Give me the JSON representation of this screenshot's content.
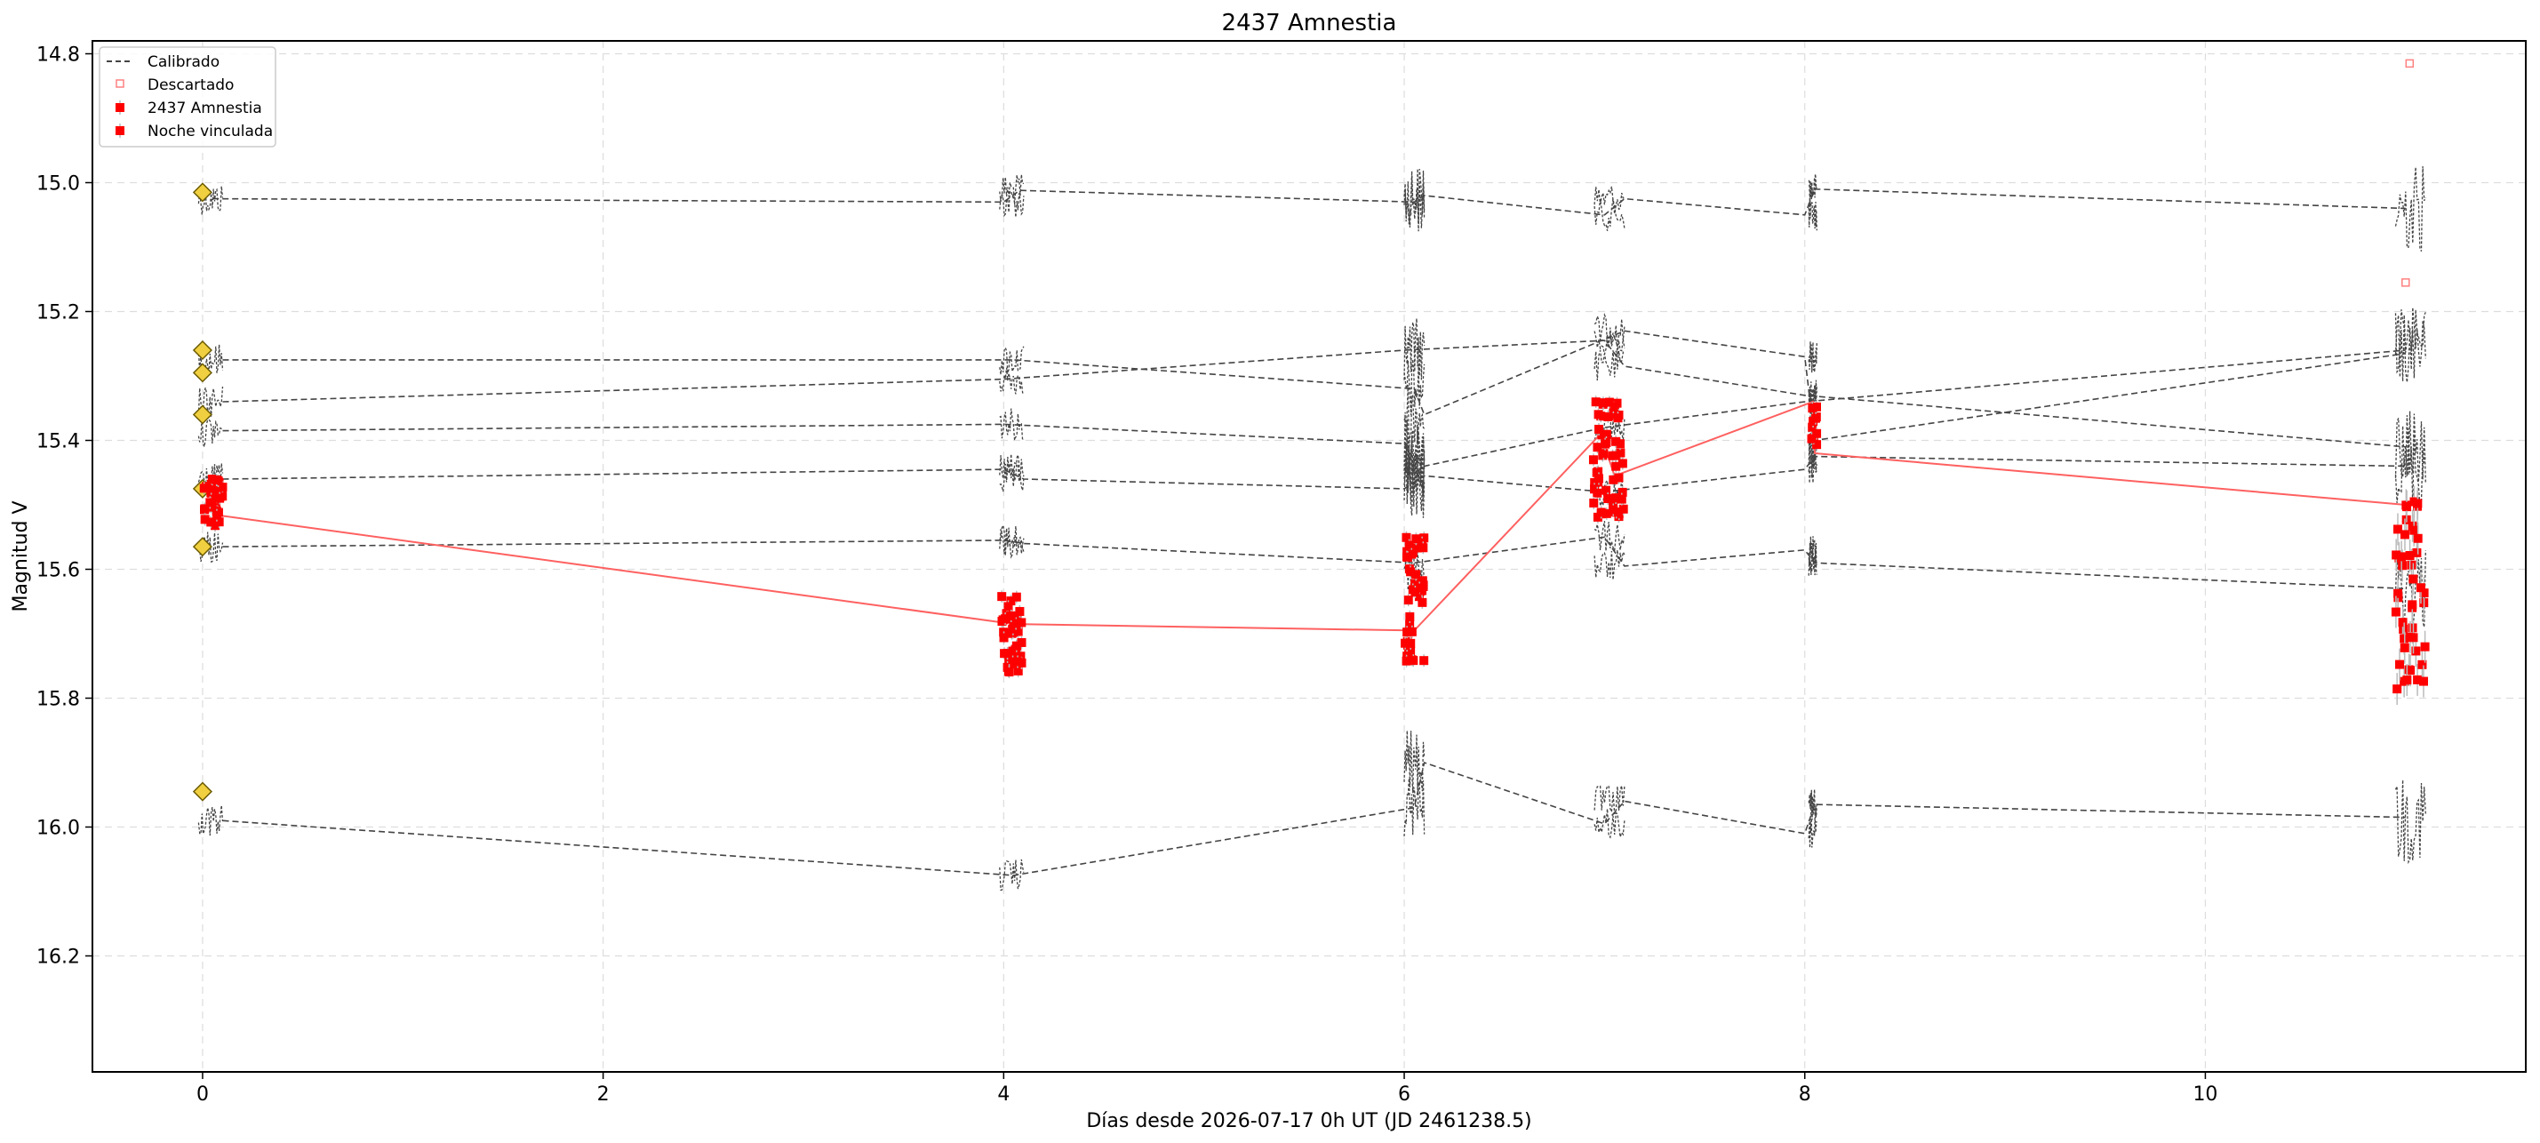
{
  "chart_data": {
    "type": "scatter",
    "title": "2437 Amnestia",
    "xlabel": "Días desde 2026-07-17 0h UT (JD 2461238.5)",
    "ylabel": "Magnitud V",
    "xlim": [
      -0.55,
      11.6
    ],
    "ylim": [
      16.38,
      14.78
    ],
    "y_inverted": true,
    "grid": true,
    "legend_position": "upper-left",
    "x_ticks": [
      0,
      2,
      4,
      6,
      8,
      10
    ],
    "x_tick_labels": [
      "0",
      "2",
      "4",
      "6",
      "8",
      "10"
    ],
    "y_ticks": [
      14.8,
      15.0,
      15.2,
      15.4,
      15.6,
      15.8,
      16.0,
      16.2
    ],
    "y_tick_labels": [
      "14.8",
      "15.0",
      "15.2",
      "15.4",
      "15.6",
      "15.8",
      "16.0",
      "16.2"
    ],
    "legend": [
      {
        "label": "Calibrado",
        "marker": "dashed-line"
      },
      {
        "label": "Descartado",
        "marker": "open-square"
      },
      {
        "label": "2437 Amnestia",
        "marker": "filled-square"
      },
      {
        "label": "Noche vinculada",
        "marker": "filled-square-errorbar"
      }
    ],
    "colors": {
      "calibrated": "#444444",
      "target": "#ff0000",
      "target_line": "#ff6060",
      "discarded": "#ff8080",
      "reference_marker": "#f0d040",
      "errorbar": "#bbbbbb"
    },
    "nights": [
      {
        "start": -0.02,
        "end": 0.1
      },
      {
        "start": 3.98,
        "end": 4.1
      },
      {
        "start": 6.0,
        "end": 6.1
      },
      {
        "start": 6.95,
        "end": 7.1
      },
      {
        "start": 8.02,
        "end": 8.06
      },
      {
        "start": 10.95,
        "end": 11.1
      }
    ],
    "comparison_stars": [
      {
        "points": [
          [
            0.05,
            15.025
          ],
          [
            4.0,
            15.03
          ],
          [
            4.08,
            15.012
          ],
          [
            6.05,
            15.03
          ],
          [
            6.1,
            15.02
          ],
          [
            7.0,
            15.05
          ],
          [
            7.1,
            15.025
          ],
          [
            8.0,
            15.05
          ],
          [
            8.05,
            15.01
          ],
          [
            11.0,
            15.04
          ]
        ]
      },
      {
        "points": [
          [
            0.1,
            15.275
          ],
          [
            4.05,
            15.275
          ],
          [
            6.05,
            15.32
          ],
          [
            6.1,
            15.36
          ],
          [
            7.1,
            15.23
          ],
          [
            8.0,
            15.27
          ],
          [
            8.05,
            15.4
          ],
          [
            11.0,
            15.265
          ]
        ]
      },
      {
        "points": [
          [
            0.1,
            15.34
          ],
          [
            4.0,
            15.305
          ],
          [
            6.0,
            15.26
          ],
          [
            7.0,
            15.245
          ],
          [
            7.1,
            15.285
          ],
          [
            8.0,
            15.33
          ],
          [
            11.0,
            15.41
          ]
        ]
      },
      {
        "points": [
          [
            0.1,
            15.385
          ],
          [
            4.0,
            15.375
          ],
          [
            6.0,
            15.405
          ],
          [
            6.05,
            15.43
          ],
          [
            6.1,
            15.44
          ],
          [
            7.0,
            15.38
          ],
          [
            8.0,
            15.34
          ],
          [
            11.0,
            15.26
          ]
        ]
      },
      {
        "points": [
          [
            0.1,
            15.46
          ],
          [
            4.0,
            15.445
          ],
          [
            4.1,
            15.46
          ],
          [
            6.0,
            15.475
          ],
          [
            6.1,
            15.455
          ],
          [
            7.0,
            15.48
          ],
          [
            8.0,
            15.445
          ],
          [
            8.05,
            15.425
          ],
          [
            11.0,
            15.44
          ]
        ]
      },
      {
        "points": [
          [
            0.1,
            15.565
          ],
          [
            4.0,
            15.555
          ],
          [
            4.1,
            15.56
          ],
          [
            6.05,
            15.59
          ],
          [
            7.0,
            15.55
          ],
          [
            7.1,
            15.595
          ],
          [
            8.0,
            15.57
          ],
          [
            8.05,
            15.59
          ],
          [
            11.0,
            15.63
          ]
        ]
      },
      {
        "points": [
          [
            0.1,
            15.99
          ],
          [
            4.05,
            16.075
          ],
          [
            6.05,
            15.97
          ],
          [
            6.1,
            15.9
          ],
          [
            7.0,
            15.995
          ],
          [
            7.1,
            15.96
          ],
          [
            8.0,
            16.01
          ],
          [
            8.05,
            15.965
          ],
          [
            11.0,
            15.985
          ]
        ]
      }
    ],
    "reference_markers": [
      {
        "x": 0.0,
        "y": 15.015
      },
      {
        "x": 0.0,
        "y": 15.26
      },
      {
        "x": 0.0,
        "y": 15.295
      },
      {
        "x": 0.0,
        "y": 15.36
      },
      {
        "x": 0.0,
        "y": 15.475
      },
      {
        "x": 0.0,
        "y": 15.565
      },
      {
        "x": 0.0,
        "y": 15.945
      }
    ],
    "target_nightly_means": [
      {
        "x": 0.05,
        "y": 15.515
      },
      {
        "x": 4.05,
        "y": 15.685
      },
      {
        "x": 6.05,
        "y": 15.695
      },
      {
        "x": 6.98,
        "y": 15.39
      },
      {
        "x": 7.05,
        "y": 15.455
      },
      {
        "x": 8.04,
        "y": 15.34
      },
      {
        "x": 8.05,
        "y": 15.42
      },
      {
        "x": 11.0,
        "y": 15.5
      }
    ],
    "target_clusters": [
      {
        "x_start": 0.0,
        "x_end": 0.1,
        "y_min": 15.46,
        "y_max": 15.535,
        "count": 34
      },
      {
        "x_start": 3.99,
        "x_end": 4.09,
        "y_min": 15.64,
        "y_max": 15.77,
        "count": 48
      },
      {
        "x_start": 6.0,
        "x_end": 6.1,
        "y_min": 15.55,
        "y_max": 15.77,
        "count": 46
      },
      {
        "x_start": 6.94,
        "x_end": 7.1,
        "y_min": 15.34,
        "y_max": 15.52,
        "count": 56
      },
      {
        "x_start": 8.03,
        "x_end": 8.06,
        "y_min": 15.34,
        "y_max": 15.42,
        "count": 10
      },
      {
        "x_start": 10.95,
        "x_end": 11.1,
        "y_min": 15.49,
        "y_max": 15.79,
        "count": 46
      }
    ],
    "discarded": [
      {
        "x": 11.02,
        "y": 14.815
      },
      {
        "x": 11.0,
        "y": 15.155
      }
    ]
  }
}
